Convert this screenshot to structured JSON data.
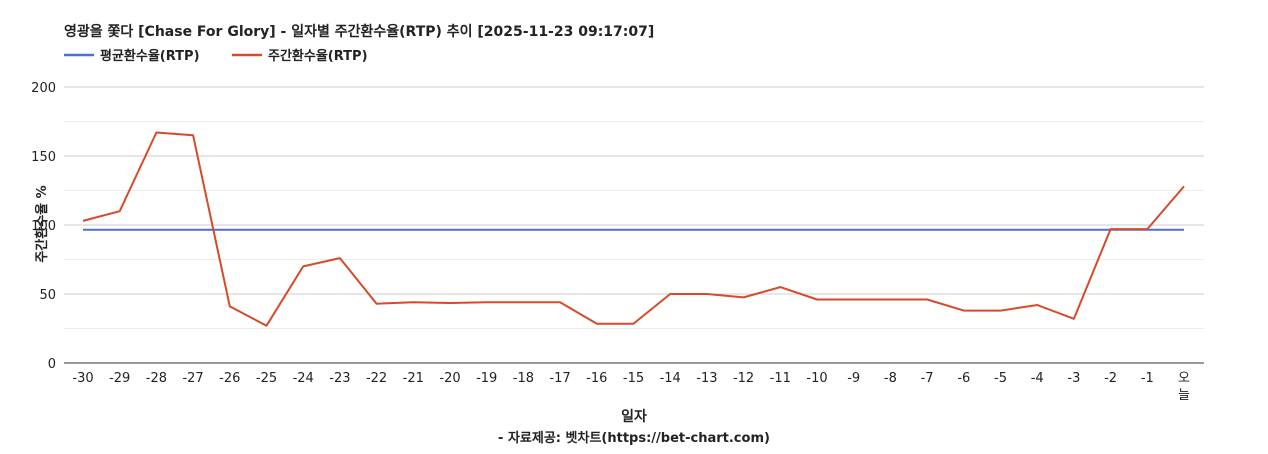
{
  "chart_data": {
    "type": "line",
    "title": "영광을 쫓다 [Chase For Glory] - 일자별 주간환수율(RTP) 추이 [2025-11-23 09:17:07]",
    "xlabel": "일자",
    "ylabel": "주간환수율 %",
    "source": "- 자료제공: 벳차트(https://bet-chart.com)",
    "categories": [
      "-30",
      "-29",
      "-28",
      "-27",
      "-26",
      "-25",
      "-24",
      "-23",
      "-22",
      "-21",
      "-20",
      "-19",
      "-18",
      "-17",
      "-16",
      "-15",
      "-14",
      "-13",
      "-12",
      "-11",
      "-10",
      "-9",
      "-8",
      "-7",
      "-6",
      "-5",
      "-4",
      "-3",
      "-2",
      "-1",
      "오늘"
    ],
    "ylim": [
      0,
      200
    ],
    "yticks": [
      0,
      50,
      100,
      150,
      200
    ],
    "grid": true,
    "legend_position": "top-left",
    "series": [
      {
        "name": "평균환수율(RTP)",
        "color": "#4a6fd6",
        "values": [
          96.5,
          96.5,
          96.5,
          96.5,
          96.5,
          96.5,
          96.5,
          96.5,
          96.5,
          96.5,
          96.5,
          96.5,
          96.5,
          96.5,
          96.5,
          96.5,
          96.5,
          96.5,
          96.5,
          96.5,
          96.5,
          96.5,
          96.5,
          96.5,
          96.5,
          96.5,
          96.5,
          96.5,
          96.5,
          96.5,
          96.5
        ]
      },
      {
        "name": "주간환수율(RTP)",
        "color": "#d64a2b",
        "values": [
          103,
          110,
          167,
          165,
          41,
          27,
          70,
          76,
          43,
          44,
          43.5,
          44,
          44,
          44,
          28.5,
          28.5,
          50,
          50,
          47.5,
          55,
          46,
          46,
          46,
          46,
          38,
          38,
          42,
          32,
          97,
          97,
          128
        ]
      }
    ]
  }
}
